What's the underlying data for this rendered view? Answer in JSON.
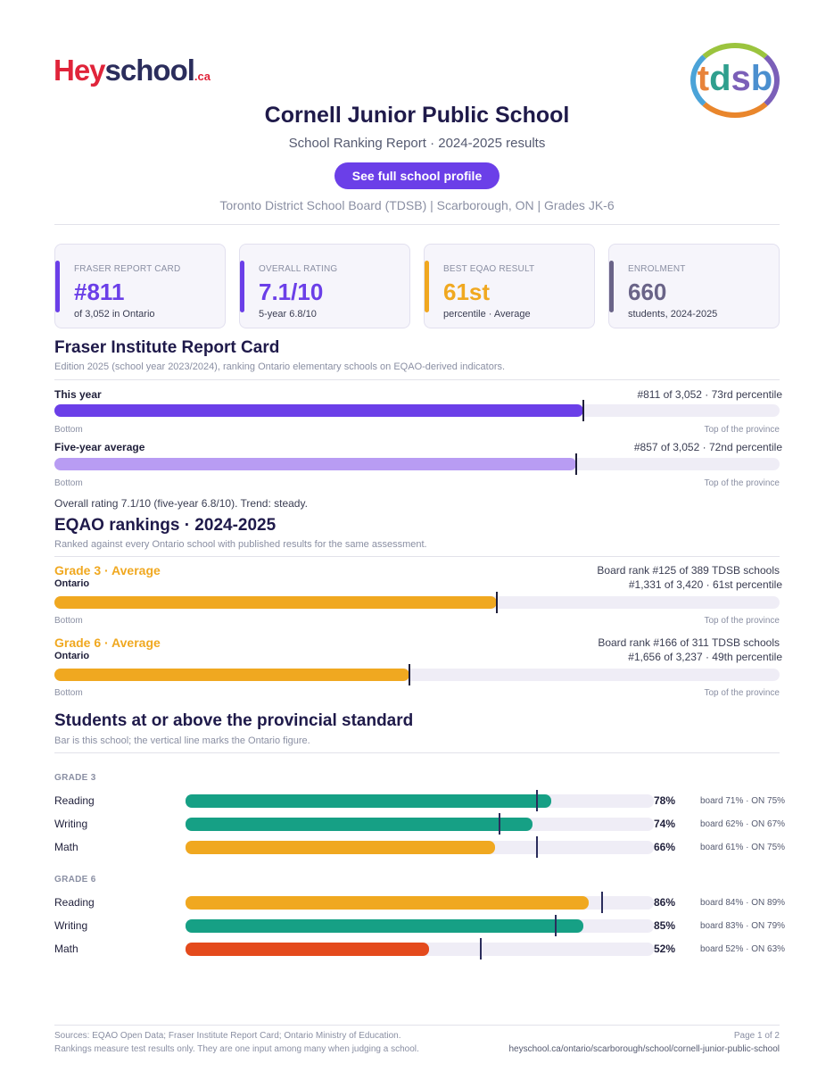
{
  "header": {
    "logo_hey": "Hey",
    "logo_school": "school",
    "logo_ca": ".ca",
    "logo_tdsb": "tdsb",
    "title": "Cornell Junior Public School",
    "subtitle": "School Ranking Report  ·  2024-2025 results",
    "profile_button": "See full school profile",
    "meta": "Toronto District School Board (TDSB)  |  Scarborough, ON  |  Grades JK-6"
  },
  "cards": [
    {
      "label": "FRASER REPORT CARD",
      "value": "#811",
      "sub": "of 3,052 in Ontario",
      "color": "#6b3fe8"
    },
    {
      "label": "OVERALL RATING",
      "value": "7.1/10",
      "sub": "5-year 6.8/10",
      "color": "#6b3fe8"
    },
    {
      "label": "BEST EQAO RESULT",
      "value": "61st",
      "sub": "percentile  ·  Average",
      "color": "#f0a820"
    },
    {
      "label": "ENROLMENT",
      "value": "660",
      "sub": "students, 2024-2025",
      "color": "#6a6488"
    }
  ],
  "fraser": {
    "heading": "Fraser Institute Report Card",
    "note": "Edition 2025 (school year 2023/2024), ranking Ontario elementary schools on EQAO-derived indicators.",
    "rows": [
      {
        "label": "This year",
        "rank": "#811 of 3,052  ·  73rd percentile",
        "percentile": 73,
        "color": "#6b3fe8"
      },
      {
        "label": "Five-year average",
        "rank": "#857 of 3,052  ·  72nd percentile",
        "percentile": 72,
        "color": "#b89cf3"
      }
    ],
    "bottom_label": "Bottom",
    "top_label": "Top of the province",
    "summary": "Overall rating 7.1/10 (five-year 6.8/10). Trend: steady."
  },
  "eqao": {
    "heading": "EQAO rankings  ·  2024-2025",
    "note": "Ranked against every Ontario school with published results for the same assessment.",
    "rows": [
      {
        "grade": "Grade 3  ·  Average",
        "scope": "Ontario",
        "board_rank": "Board rank #125 of 389 TDSB schools",
        "prov_rank": "#1,331 of 3,420  ·  61st percentile",
        "percentile": 61,
        "color": "#f0a820"
      },
      {
        "grade": "Grade 6  ·  Average",
        "scope": "Ontario",
        "board_rank": "Board rank #166 of 311 TDSB schools",
        "prov_rank": "#1,656 of 3,237  ·  49th percentile",
        "percentile": 49,
        "color": "#f0a820"
      }
    ],
    "bottom_label": "Bottom",
    "top_label": "Top of the province"
  },
  "standards": {
    "heading": "Students at or above the provincial standard",
    "note": "Bar is this school; the vertical line marks the Ontario figure.",
    "groups": [
      {
        "label": "GRADE 3",
        "subjects": [
          {
            "name": "Reading",
            "school": 78,
            "ontario": 75,
            "pct": "78%",
            "compare": "board 71%  ·  ON 75%",
            "color": "#16a085"
          },
          {
            "name": "Writing",
            "school": 74,
            "ontario": 67,
            "pct": "74%",
            "compare": "board 62%  ·  ON 67%",
            "color": "#16a085"
          },
          {
            "name": "Math",
            "school": 66,
            "ontario": 75,
            "pct": "66%",
            "compare": "board 61%  ·  ON 75%",
            "color": "#f0a820"
          }
        ]
      },
      {
        "label": "GRADE 6",
        "subjects": [
          {
            "name": "Reading",
            "school": 86,
            "ontario": 89,
            "pct": "86%",
            "compare": "board 84%  ·  ON 89%",
            "color": "#f0a820"
          },
          {
            "name": "Writing",
            "school": 85,
            "ontario": 79,
            "pct": "85%",
            "compare": "board 83%  ·  ON 79%",
            "color": "#16a085"
          },
          {
            "name": "Math",
            "school": 52,
            "ontario": 63,
            "pct": "52%",
            "compare": "board 52%  ·  ON 63%",
            "color": "#e44a1c"
          }
        ]
      }
    ]
  },
  "footer": {
    "sources": "Sources: EQAO Open Data; Fraser Institute Report Card; Ontario Ministry of Education.",
    "disclaimer": "Rankings measure test results only. They are one input among many when judging a school.",
    "page": "Page 1 of 2",
    "url": "heyschool.ca/ontario/scarborough/school/cornell-junior-public-school"
  }
}
